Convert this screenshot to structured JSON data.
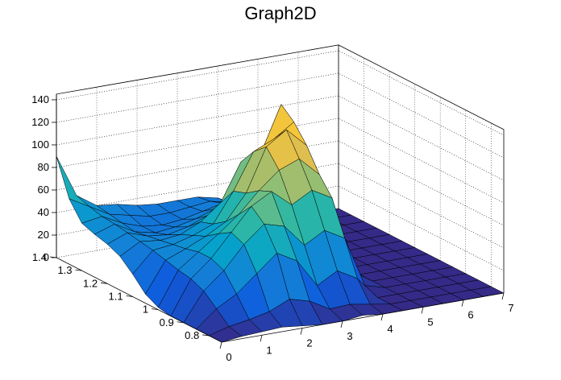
{
  "chart_data": {
    "type": "surface",
    "title": "Graph2D",
    "xlabel": "",
    "ylabel": "",
    "zlabel": "",
    "xlim": [
      0,
      7
    ],
    "ylim": [
      0.75,
      1.4
    ],
    "zlim": [
      0,
      145
    ],
    "x_ticks": [
      "0",
      "1",
      "2",
      "3",
      "4",
      "5",
      "6",
      "7"
    ],
    "y_ticks": [
      "0.8",
      "0.9",
      "1",
      "1.1",
      "1.2",
      "1.3",
      "1.4"
    ],
    "z_ticks": [
      "0",
      "20",
      "40",
      "60",
      "80",
      "100",
      "120",
      "140"
    ],
    "x_grid": [
      0.0,
      0.5,
      1.0,
      1.5,
      2.0,
      2.5,
      3.0,
      3.5,
      4.0,
      4.5,
      5.0,
      5.5,
      6.0,
      6.5,
      7.0
    ],
    "y_grid": [
      0.75,
      0.8,
      0.85,
      0.9,
      0.95,
      1.0,
      1.05,
      1.1,
      1.15,
      1.2,
      1.25,
      1.3,
      1.35,
      1.4
    ],
    "z": [
      [
        0,
        2,
        3,
        4,
        2,
        0,
        0,
        2,
        0,
        0,
        0,
        0,
        0,
        0,
        0
      ],
      [
        0,
        5,
        8,
        12,
        20,
        15,
        5,
        6,
        3,
        0,
        0,
        0,
        0,
        0,
        0
      ],
      [
        0,
        15,
        25,
        40,
        55,
        45,
        20,
        30,
        20,
        0,
        0,
        0,
        0,
        0,
        0
      ],
      [
        0,
        25,
        40,
        60,
        75,
        70,
        50,
        60,
        50,
        5,
        0,
        0,
        0,
        0,
        0
      ],
      [
        0,
        30,
        45,
        65,
        85,
        95,
        80,
        90,
        80,
        12,
        0,
        0,
        0,
        0,
        0
      ],
      [
        2,
        32,
        45,
        58,
        72,
        90,
        105,
        112,
        95,
        18,
        0,
        0,
        0,
        0,
        0
      ],
      [
        8,
        35,
        42,
        50,
        60,
        82,
        120,
        132,
        115,
        25,
        0,
        0,
        0,
        0,
        0
      ],
      [
        20,
        38,
        40,
        45,
        52,
        78,
        110,
        118,
        130,
        40,
        0,
        0,
        0,
        0,
        0
      ],
      [
        30,
        40,
        38,
        40,
        48,
        62,
        95,
        100,
        140,
        55,
        0,
        0,
        0,
        0,
        0
      ],
      [
        35,
        42,
        36,
        34,
        38,
        45,
        60,
        68,
        85,
        45,
        0,
        0,
        0,
        0,
        0
      ],
      [
        38,
        44,
        34,
        30,
        32,
        36,
        42,
        48,
        52,
        30,
        0,
        0,
        0,
        0,
        0
      ],
      [
        42,
        45,
        36,
        30,
        28,
        30,
        34,
        38,
        36,
        20,
        0,
        0,
        0,
        0,
        0
      ],
      [
        58,
        48,
        38,
        34,
        30,
        30,
        32,
        34,
        30,
        15,
        0,
        0,
        0,
        0,
        0
      ],
      [
        90,
        52,
        40,
        38,
        34,
        32,
        32,
        32,
        28,
        10,
        0,
        0,
        0,
        0,
        0
      ]
    ],
    "palette": [
      "#352a87",
      "#0f5cdd",
      "#1481d6",
      "#06a4ca",
      "#2eb7a4",
      "#87bf77",
      "#d1bb59",
      "#fec832",
      "#f9fb0e"
    ],
    "grid": true
  }
}
